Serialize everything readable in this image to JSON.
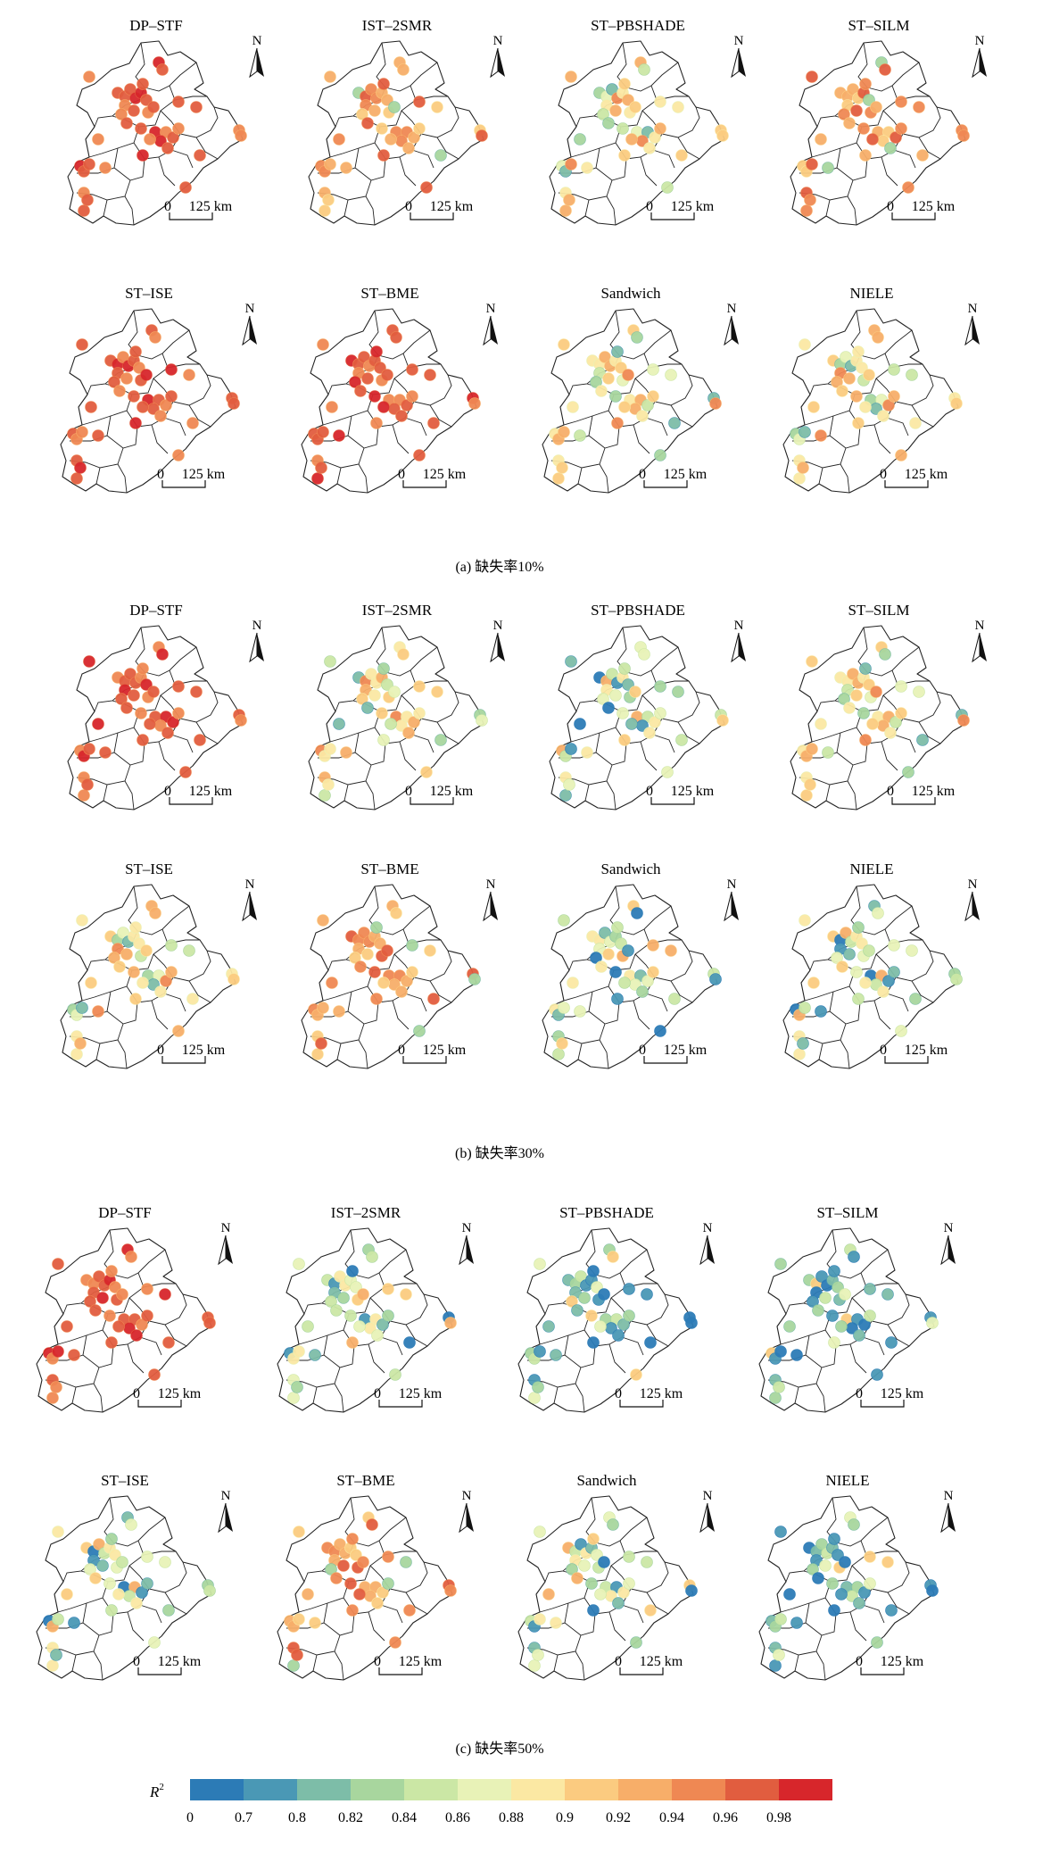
{
  "groups": [
    {
      "caption": "(a) 缺失率10%",
      "maps": [
        {
          "title": "DP–STF",
          "pal": "hi"
        },
        {
          "title": "IST–2SMR",
          "pal": "mixhi"
        },
        {
          "title": "ST–PBSHADE",
          "pal": "mid"
        },
        {
          "title": "ST–SILM",
          "pal": "mixhi"
        },
        {
          "title": "ST–ISE",
          "pal": "hi"
        },
        {
          "title": "ST–BME",
          "pal": "hi"
        },
        {
          "title": "Sandwich",
          "pal": "mid"
        },
        {
          "title": "NIELE",
          "pal": "mid"
        }
      ]
    },
    {
      "caption": "(b) 缺失率30%",
      "maps": [
        {
          "title": "DP–STF",
          "pal": "hi"
        },
        {
          "title": "IST–2SMR",
          "pal": "mid"
        },
        {
          "title": "ST–PBSHADE",
          "pal": "midlo"
        },
        {
          "title": "ST–SILM",
          "pal": "mid"
        },
        {
          "title": "ST–ISE",
          "pal": "mid"
        },
        {
          "title": "ST–BME",
          "pal": "mixhi"
        },
        {
          "title": "Sandwich",
          "pal": "midlo"
        },
        {
          "title": "NIELE",
          "pal": "midlo"
        }
      ]
    },
    {
      "caption": "(c) 缺失率50%",
      "maps": [
        {
          "title": "DP–STF",
          "pal": "hi"
        },
        {
          "title": "IST–2SMR",
          "pal": "midlo"
        },
        {
          "title": "ST–PBSHADE",
          "pal": "lo"
        },
        {
          "title": "ST–SILM",
          "pal": "lo"
        },
        {
          "title": "ST–ISE",
          "pal": "midlo"
        },
        {
          "title": "ST–BME",
          "pal": "mixhi"
        },
        {
          "title": "Sandwich",
          "pal": "midlo"
        },
        {
          "title": "NIELE",
          "pal": "lo"
        }
      ]
    }
  ],
  "scale_label": "125 km",
  "scale_zero": "0",
  "north_label": "N",
  "legend": {
    "label": "R",
    "label_sup": "2",
    "colors": [
      "#2c7bb6",
      "#4a98b5",
      "#7dbda8",
      "#a8d69e",
      "#cbe7a5",
      "#e8f2b7",
      "#fbe8a3",
      "#fbcb80",
      "#f7ae69",
      "#ef8853",
      "#e15d3f",
      "#d7262b"
    ],
    "ticks": [
      "0",
      "0.7",
      "0.8",
      "0.82",
      "0.84",
      "0.86",
      "0.88",
      "0.9",
      "0.92",
      "0.94",
      "0.96",
      "0.98"
    ]
  }
}
